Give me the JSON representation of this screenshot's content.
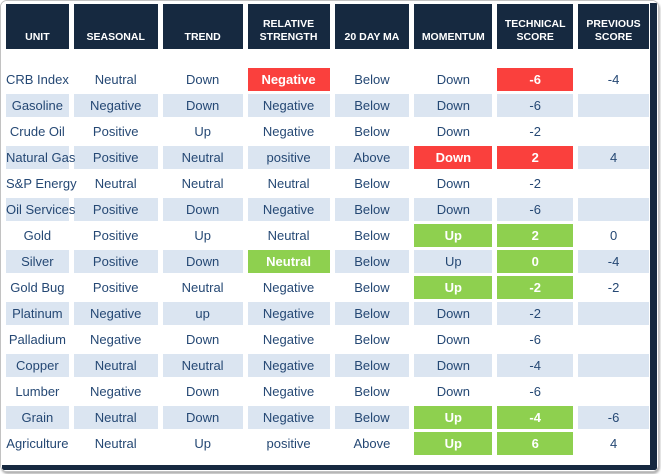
{
  "chart_data": {
    "type": "table",
    "columns": [
      {
        "key": "unit",
        "label": "UNIT"
      },
      {
        "key": "seasonal",
        "label": "SEASONAL"
      },
      {
        "key": "trend",
        "label": "TREND"
      },
      {
        "key": "relative-strength",
        "label": "RELATIVE STRENGTH"
      },
      {
        "key": "20-day-ma",
        "label": "20 DAY MA"
      },
      {
        "key": "momentum",
        "label": "MOMENTUM"
      },
      {
        "key": "technical-score",
        "label": "TECHNICAL SCORE"
      },
      {
        "key": "previous-score",
        "label": "PREVIOUS SCORE"
      }
    ],
    "rows": [
      [
        "CRB Index",
        "Neutral",
        "Down",
        {
          "text": "Negative",
          "highlight": "red"
        },
        "Below",
        "Down",
        {
          "text": "-6",
          "highlight": "red"
        },
        "-4"
      ],
      [
        "Gasoline",
        "Negative",
        "Down",
        "Negative",
        "Below",
        "Down",
        "-6",
        ""
      ],
      [
        "Crude Oil",
        "Positive",
        "Up",
        "Negative",
        "Below",
        "Down",
        "-2",
        ""
      ],
      [
        "Natural Gas",
        "Positive",
        "Neutral",
        "positive",
        "Above",
        {
          "text": "Down",
          "highlight": "red"
        },
        {
          "text": "2",
          "highlight": "red"
        },
        "4"
      ],
      [
        "S&P Energy",
        "Neutral",
        "Neutral",
        "Neutral",
        "Below",
        "Down",
        "-2",
        ""
      ],
      [
        "Oil Services",
        "Positive",
        "Down",
        "Negative",
        "Below",
        "Down",
        "-6",
        ""
      ],
      [
        "Gold",
        "Positive",
        "Up",
        "Neutral",
        "Below",
        {
          "text": "Up",
          "highlight": "green"
        },
        {
          "text": "2",
          "highlight": "green"
        },
        "0"
      ],
      [
        "Silver",
        "Positive",
        "Down",
        {
          "text": "Neutral",
          "highlight": "green"
        },
        "Below",
        "Up",
        {
          "text": "0",
          "highlight": "green"
        },
        "-4"
      ],
      [
        "Gold Bug",
        "Positive",
        "Neutral",
        "Negative",
        "Below",
        {
          "text": "Up",
          "highlight": "green"
        },
        {
          "text": "-2",
          "highlight": "green"
        },
        "-2"
      ],
      [
        "Platinum",
        "Negative",
        "up",
        "Negative",
        "Below",
        "Down",
        "-2",
        ""
      ],
      [
        "Palladium",
        "Negative",
        "Down",
        "Negative",
        "Below",
        "Down",
        "-6",
        ""
      ],
      [
        "Copper",
        "Neutral",
        "Neutral",
        "Negative",
        "Below",
        "Down",
        "-4",
        ""
      ],
      [
        "Lumber",
        "Negative",
        "Down",
        "Negative",
        "Below",
        "Down",
        "-6",
        ""
      ],
      [
        "Grain",
        "Neutral",
        "Down",
        "Negative",
        "Below",
        {
          "text": "Up",
          "highlight": "green"
        },
        {
          "text": "-4",
          "highlight": "green"
        },
        "-6"
      ],
      [
        "Agriculture",
        "Neutral",
        "Up",
        "positive",
        "Above",
        {
          "text": "Up",
          "highlight": "green"
        },
        {
          "text": "6",
          "highlight": "green"
        },
        "4"
      ]
    ]
  },
  "colors": {
    "header_bg": "#162940",
    "row_alt": "#dbe5f1",
    "red": "#fa403d",
    "green": "#8ed04f",
    "text": "#254874",
    "highlight_text": "#ffffff"
  }
}
